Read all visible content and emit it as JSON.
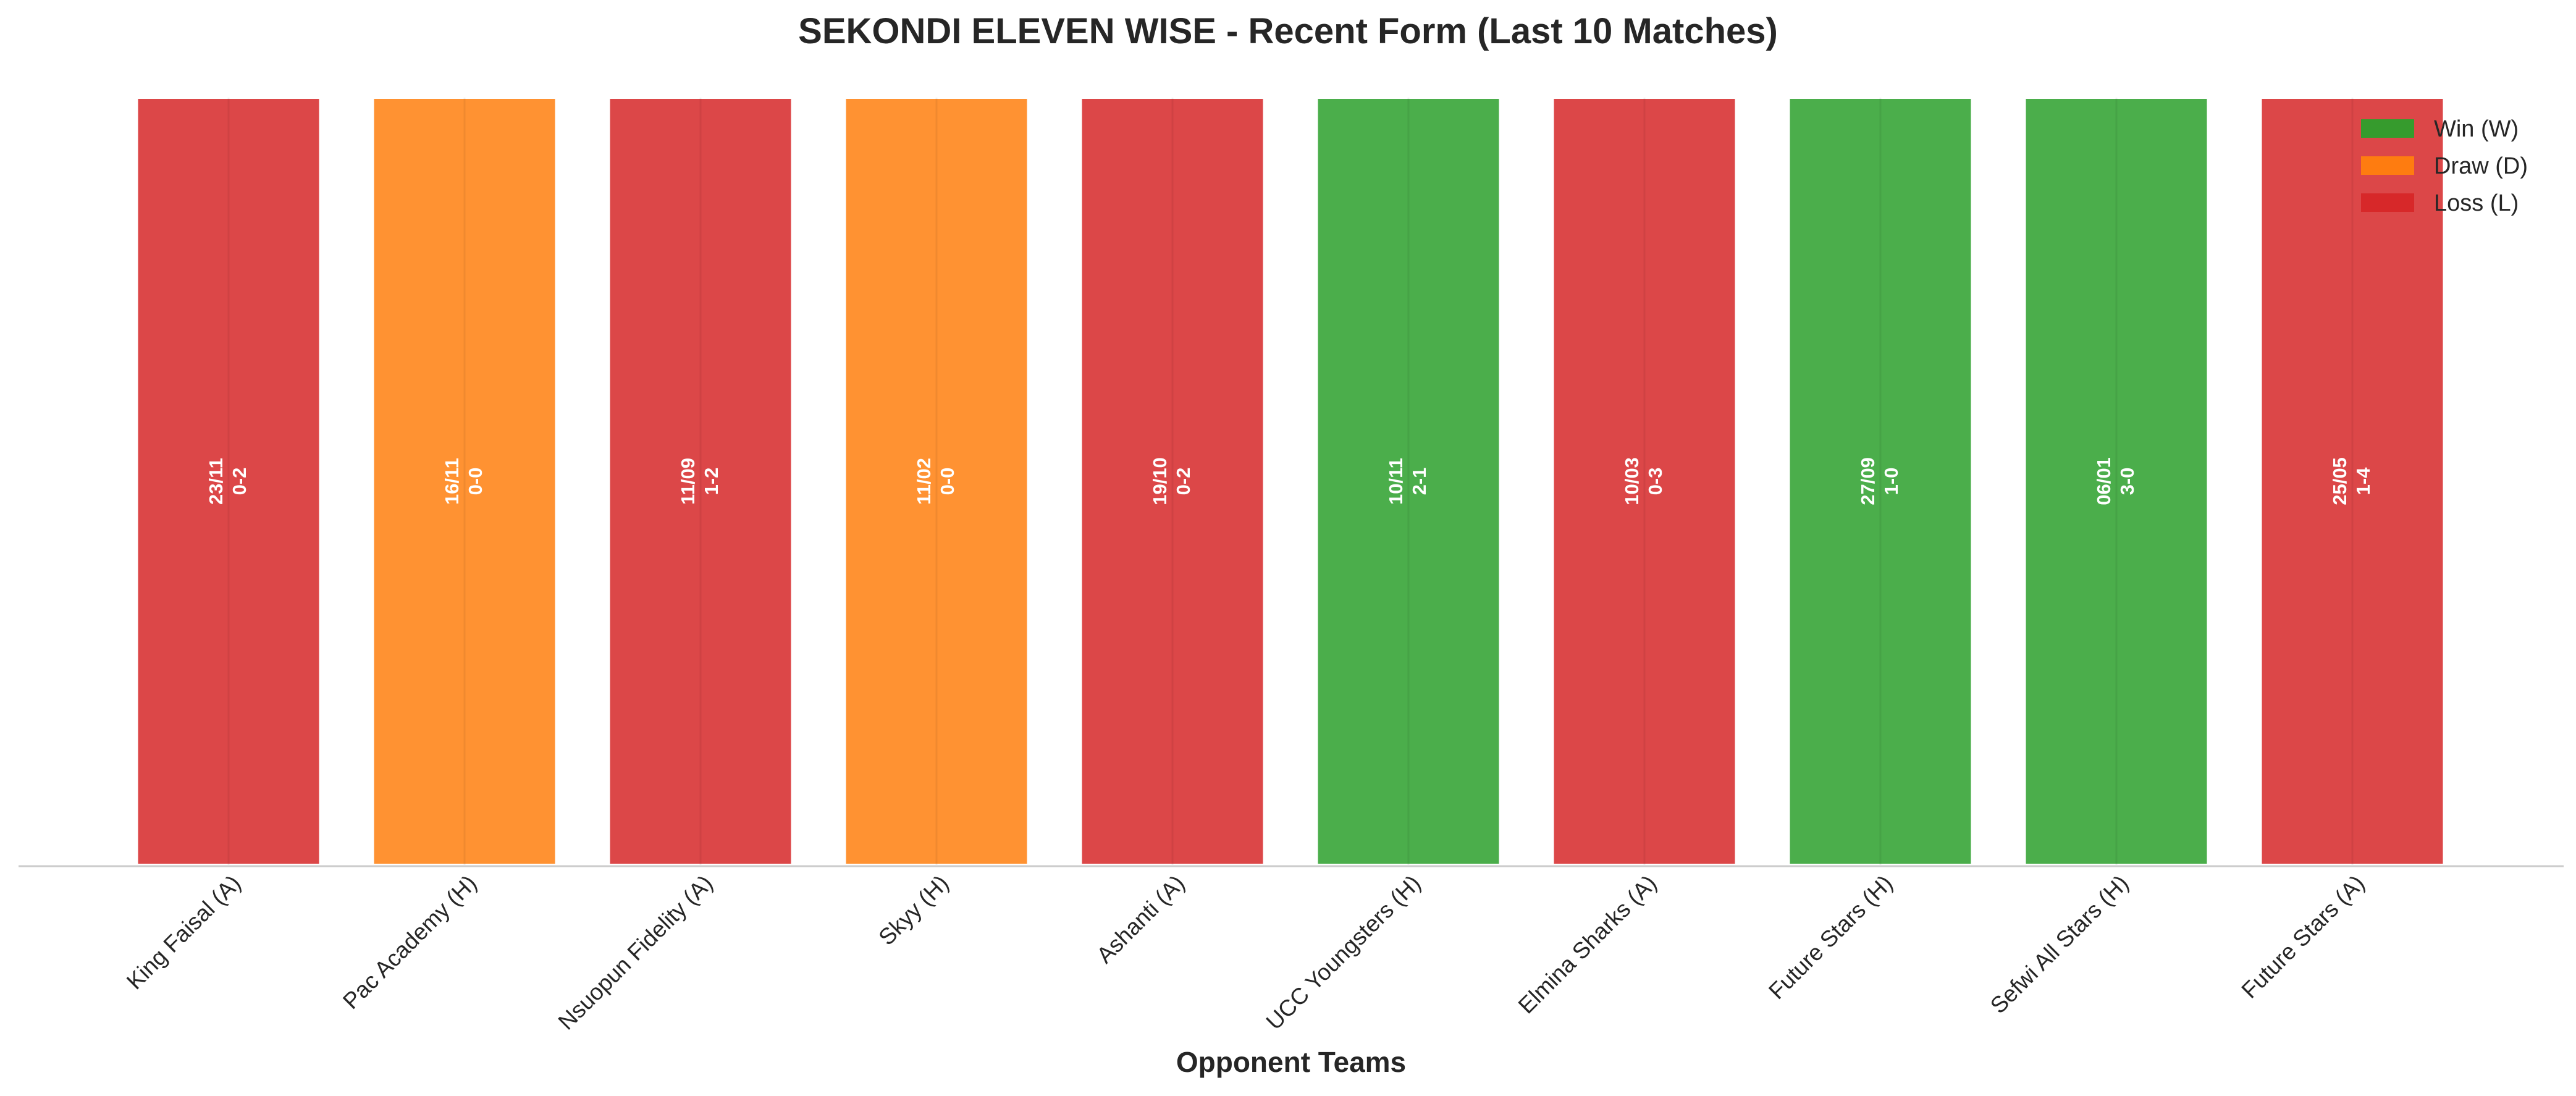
{
  "chart_data": {
    "type": "bar",
    "title": "SEKONDI ELEVEN WISE - Recent Form (Last 10 Matches)",
    "xlabel": "Opponent Teams",
    "ylabel": "",
    "grid": false,
    "legend_placement": "top-right",
    "legend": [
      {
        "key": "W",
        "label": "Win (W)",
        "color": "#2ca02c"
      },
      {
        "key": "D",
        "label": "Draw (D)",
        "color": "#ff7f0e"
      },
      {
        "key": "L",
        "label": "Loss (L)",
        "color": "#d62728"
      }
    ],
    "categories": [
      "King Faisal (A)",
      "Pac Academy (H)",
      "Nsuopun Fidelity (A)",
      "Skyy (H)",
      "Ashanti (A)",
      "UCC Youngsters (H)",
      "Elmina Sharks (A)",
      "Future Stars (H)",
      "Sefwi All Stars (H)",
      "Future Stars (A)"
    ],
    "values": [
      1,
      1,
      1,
      1,
      1,
      1,
      1,
      1,
      1,
      1
    ],
    "ylim": [
      0,
      1
    ],
    "results": [
      "L",
      "D",
      "L",
      "D",
      "L",
      "W",
      "L",
      "W",
      "W",
      "L"
    ],
    "dates": [
      "23/11",
      "16/11",
      "11/09",
      "11/02",
      "19/10",
      "10/11",
      "10/03",
      "27/09",
      "06/01",
      "25/05"
    ],
    "scores": [
      "0-2",
      "0-0",
      "1-2",
      "0-0",
      "0-2",
      "2-1",
      "0-3",
      "1-0",
      "3-0",
      "1-4"
    ]
  }
}
